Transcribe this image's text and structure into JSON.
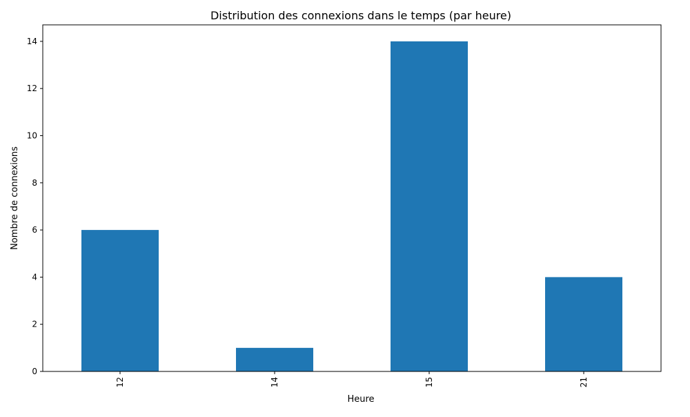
{
  "chart_data": {
    "type": "bar",
    "title": "Distribution des connexions dans le temps (par heure)",
    "xlabel": "Heure",
    "ylabel": "Nombre de connexions",
    "categories": [
      "12",
      "14",
      "15",
      "21"
    ],
    "values": [
      6,
      1,
      14,
      4
    ],
    "ylim": [
      0,
      14.7
    ],
    "yticks": [
      0,
      2,
      4,
      6,
      8,
      10,
      12,
      14
    ],
    "bar_color": "#1f77b4",
    "grid": false,
    "legend": false,
    "xtick_rotation": "vertical"
  }
}
